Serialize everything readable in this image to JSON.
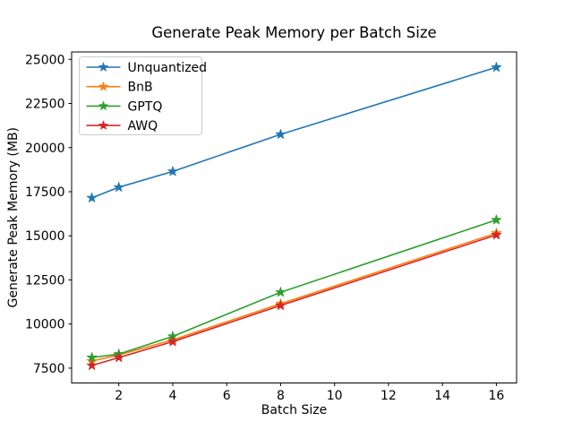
{
  "figure": {
    "title": "Generate Peak Memory per Batch Size",
    "xlabel": "Batch Size",
    "ylabel": "Generate Peak Memory (MB)"
  },
  "chart_data": {
    "type": "line",
    "title": "Generate Peak Memory per Batch Size",
    "xlabel": "Batch Size",
    "ylabel": "Generate Peak Memory (MB)",
    "x": [
      1,
      2,
      4,
      8,
      16
    ],
    "series": [
      {
        "name": "Unquantized",
        "color": "#1f77b4",
        "marker": "star",
        "values": [
          17150,
          17750,
          18650,
          20750,
          24550
        ]
      },
      {
        "name": "BnB",
        "color": "#ff7f0e",
        "marker": "star",
        "values": [
          7900,
          8250,
          9100,
          11150,
          15150
        ]
      },
      {
        "name": "GPTQ",
        "color": "#2ca02c",
        "marker": "star",
        "values": [
          8100,
          8300,
          9300,
          11800,
          15900
        ]
      },
      {
        "name": "AWQ",
        "color": "#d62728",
        "marker": "star",
        "values": [
          7650,
          8100,
          9000,
          11050,
          15050
        ]
      }
    ],
    "xticks": [
      2,
      4,
      6,
      8,
      10,
      12,
      14,
      16
    ],
    "yticks": [
      7500,
      10000,
      12500,
      15000,
      17500,
      20000,
      22500,
      25000
    ],
    "xlim": [
      0.25,
      16.75
    ],
    "ylim": [
      6660,
      25420
    ],
    "grid": false,
    "legend_position": "upper left",
    "axes_color": "#000000",
    "background_color": "#ffffff"
  }
}
